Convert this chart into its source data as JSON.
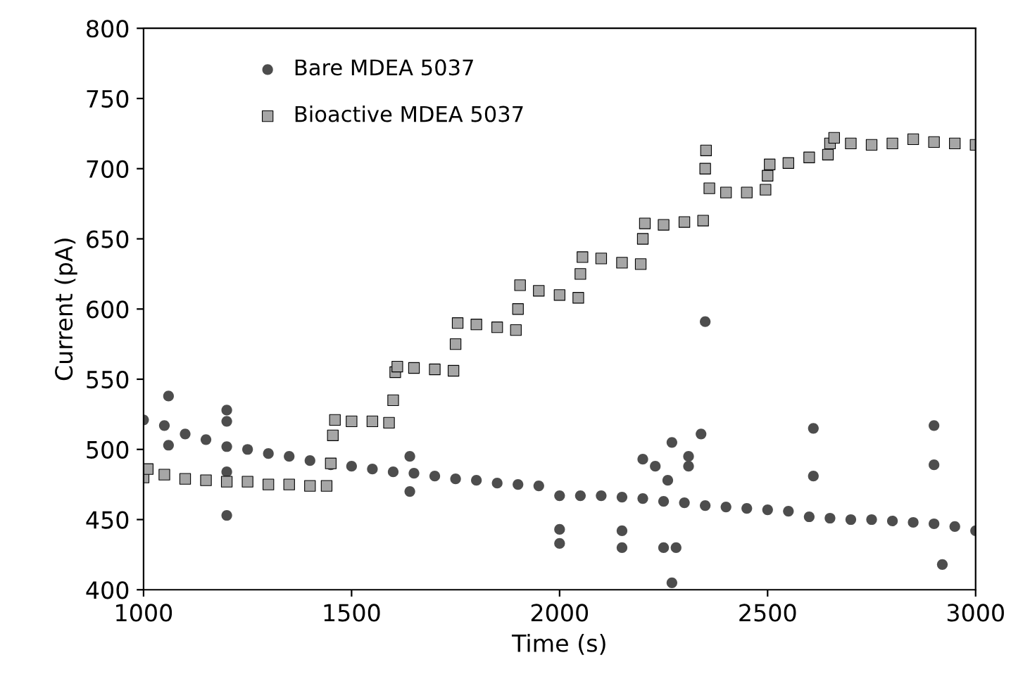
{
  "chart_data": {
    "type": "scatter",
    "xlabel": "Time (s)",
    "ylabel": "Current (pA)",
    "xlim": [
      1000,
      3000
    ],
    "xticks": [
      1000,
      1500,
      2000,
      2500,
      3000
    ],
    "ylim": [
      400,
      800
    ],
    "yticks": [
      400,
      450,
      500,
      550,
      600,
      650,
      700,
      750,
      800
    ],
    "grid": false,
    "legend": "top left",
    "series": [
      {
        "name": "Bare MDEA 5037",
        "color": "#4d4d4d",
        "marker": "circle",
        "x": [
          1000,
          1050,
          1100,
          1150,
          1200,
          1250,
          1300,
          1350,
          1400,
          1450,
          1500,
          1550,
          1600,
          1650,
          1700,
          1750,
          1800,
          1850,
          1900,
          1950,
          2000,
          2050,
          2100,
          2150,
          2200,
          2250,
          2300,
          2350,
          2400,
          2450,
          2500,
          2550,
          2600,
          2650,
          2700,
          2750,
          2800,
          2850,
          2900,
          2950,
          3000,
          1060,
          1060,
          1200,
          1200,
          1200,
          1200,
          1640,
          1640,
          2000,
          2000,
          2150,
          2150,
          2200,
          2230,
          2260,
          2250,
          2280,
          2270,
          2310,
          2310,
          2340,
          2350,
          2610,
          2610,
          2900,
          2900,
          2920,
          2270
        ],
        "values": [
          521,
          517,
          511,
          507,
          502,
          500,
          497,
          495,
          492,
          489,
          488,
          486,
          484,
          483,
          481,
          479,
          478,
          476,
          475,
          474,
          467,
          467,
          467,
          466,
          465,
          463,
          462,
          460,
          459,
          458,
          457,
          456,
          452,
          451,
          450,
          450,
          449,
          448,
          447,
          445,
          442,
          538,
          503,
          528,
          520,
          484,
          453,
          495,
          470,
          433,
          443,
          430,
          442,
          493,
          488,
          478,
          430,
          430,
          505,
          488,
          495,
          511,
          591,
          515,
          481,
          517,
          489,
          418,
          405
        ]
      },
      {
        "name": "Bioactive MDEA 5037",
        "color": "#a6a6a6",
        "marker": "square",
        "x": [
          1000,
          1010,
          1050,
          1100,
          1150,
          1200,
          1250,
          1300,
          1350,
          1400,
          1440,
          1450,
          1455,
          1460,
          1500,
          1550,
          1590,
          1600,
          1605,
          1610,
          1650,
          1700,
          1745,
          1750,
          1755,
          1800,
          1850,
          1895,
          1900,
          1905,
          1950,
          2000,
          2045,
          2050,
          2055,
          2100,
          2150,
          2195,
          2200,
          2205,
          2250,
          2300,
          2345,
          2350,
          2352,
          2360,
          2400,
          2450,
          2495,
          2500,
          2505,
          2550,
          2600,
          2645,
          2650,
          2660,
          2700,
          2750,
          2800,
          2850,
          2900,
          2950,
          3000
        ],
        "values": [
          480,
          486,
          482,
          479,
          478,
          477,
          477,
          475,
          475,
          474,
          474,
          490,
          510,
          521,
          520,
          520,
          519,
          535,
          555,
          559,
          558,
          557,
          556,
          575,
          590,
          589,
          587,
          585,
          600,
          617,
          613,
          610,
          608,
          625,
          637,
          636,
          633,
          632,
          650,
          661,
          660,
          662,
          663,
          700,
          713,
          686,
          683,
          683,
          685,
          695,
          703,
          704,
          708,
          710,
          718,
          722,
          718,
          717,
          718,
          721,
          719,
          718,
          717
        ]
      }
    ]
  }
}
